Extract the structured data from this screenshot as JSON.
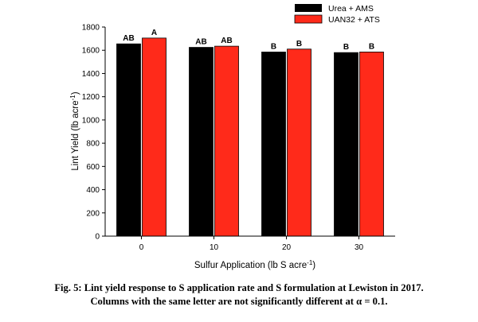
{
  "chart_data": {
    "type": "bar",
    "categories": [
      "0",
      "10",
      "20",
      "30"
    ],
    "series": [
      {
        "name": "Urea + AMS",
        "color": "#000000",
        "values": [
          1655,
          1625,
          1585,
          1580
        ],
        "letters": [
          "AB",
          "AB",
          "B",
          "B"
        ]
      },
      {
        "name": "UAN32 + ATS",
        "color": "#ff2a1a",
        "values": [
          1705,
          1635,
          1610,
          1585
        ],
        "letters": [
          "A",
          "AB",
          "B",
          "B"
        ]
      }
    ],
    "ylabel_main": "Lint Yield (lb acre",
    "ylabel_sup": "-1",
    "ylabel_close": ")",
    "xlabel_main": "Sulfur Application (lb S acre",
    "xlabel_sup": "-1",
    "xlabel_close": ")",
    "ylim": [
      0,
      1800
    ],
    "yticks": [
      "0",
      "200",
      "400",
      "600",
      "800",
      "1000",
      "1200",
      "1400",
      "1600",
      "1800"
    ],
    "legend_position": "top-right",
    "grid": false
  },
  "caption": {
    "line1": "Fig. 5: Lint yield response to S application rate and S formulation at Lewiston in 2017.",
    "line2": "Columns with the same letter are not significantly different at α = 0.1."
  }
}
